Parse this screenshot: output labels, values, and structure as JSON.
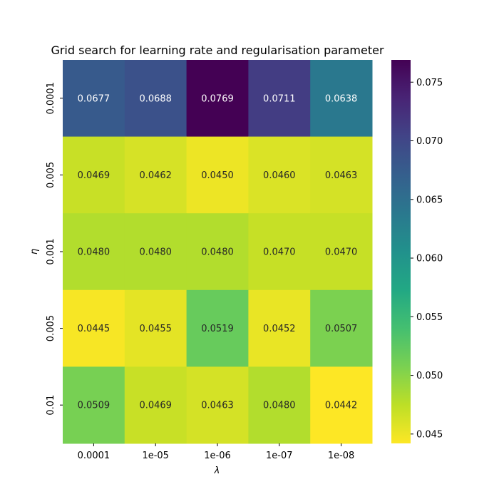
{
  "chart_data": {
    "type": "heatmap",
    "title": "Grid search for learning rate and regularisation parameter",
    "xlabel": "λ",
    "ylabel": "η",
    "x_categories": [
      "0.0001",
      "1e-05",
      "1e-06",
      "1e-07",
      "1e-08"
    ],
    "y_categories": [
      "0.0001",
      "0.005",
      "0.001",
      "0.005",
      "0.01"
    ],
    "values": [
      [
        0.0677,
        0.0688,
        0.0769,
        0.0711,
        0.0638
      ],
      [
        0.0469,
        0.0462,
        0.045,
        0.046,
        0.0463
      ],
      [
        0.048,
        0.048,
        0.048,
        0.047,
        0.047
      ],
      [
        0.0445,
        0.0455,
        0.0519,
        0.0452,
        0.0507
      ],
      [
        0.0509,
        0.0469,
        0.0463,
        0.048,
        0.0442
      ]
    ],
    "colormap": "viridis_r",
    "vmin": 0.0442,
    "vmax": 0.0769,
    "colorbar_ticks": [
      "0.045",
      "0.050",
      "0.055",
      "0.060",
      "0.065",
      "0.070",
      "0.075"
    ],
    "annotated": true,
    "grid": false,
    "legend": "colorbar-right"
  }
}
